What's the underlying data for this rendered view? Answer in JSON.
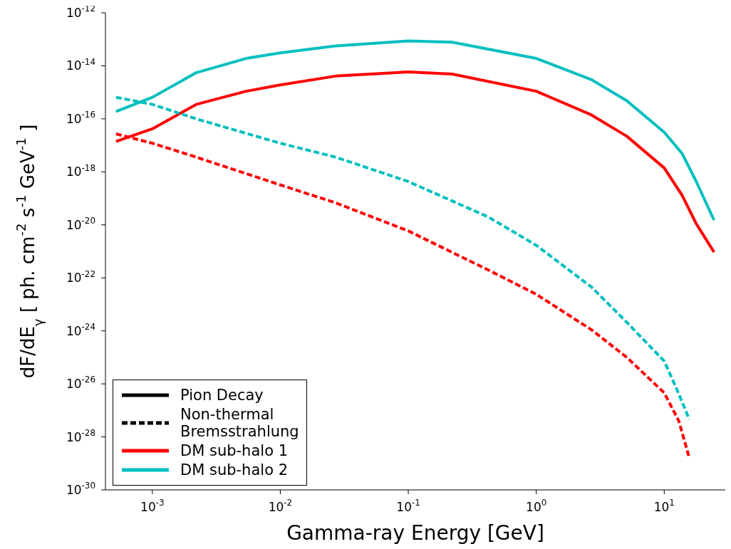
{
  "chart_data": {
    "type": "line",
    "xlabel": "Gamma-ray Energy  [GeV]",
    "ylabel": "dF/dE$_{γ}$  [ ph. cm$^{-2}$ s$^{-1}$ GeV$^{-1}$ ]",
    "log": "xy",
    "grid": false,
    "legend": "bottom left",
    "marker": "none",
    "xlim": [
      0.00043,
      30
    ],
    "ylim": [
      1e-30,
      1e-12
    ],
    "xticks": [
      {
        "value": 0.001,
        "label": "10$^{-3}$"
      },
      {
        "value": 0.01,
        "label": "10$^{-2}$"
      },
      {
        "value": 0.1,
        "label": "10$^{-1}$"
      },
      {
        "value": 1,
        "label": "10$^{0}$"
      },
      {
        "value": 10,
        "label": "10$^{1}$"
      }
    ],
    "yticks": [
      {
        "value": 1e-30,
        "label": "10$^{-30}$"
      },
      {
        "value": 1e-28,
        "label": "10$^{-28}$"
      },
      {
        "value": 1e-26,
        "label": "10$^{-26}$"
      },
      {
        "value": 1e-24,
        "label": "10$^{-24}$"
      },
      {
        "value": 1e-22,
        "label": "10$^{-22}$"
      },
      {
        "value": 1e-20,
        "label": "10$^{-20}$"
      },
      {
        "value": 1e-18,
        "label": "10$^{-18}$"
      },
      {
        "value": 1e-16,
        "label": "10$^{-16}$"
      },
      {
        "value": 1e-14,
        "label": "10$^{-14}$"
      },
      {
        "value": 1e-12,
        "label": "10$^{-12}$"
      }
    ],
    "annotations": [
      "Pion Decay",
      "Non-thermal\nBremsstrahlung"
    ],
    "series": [
      {
        "name": "DM sub-halo 1",
        "color": "#ff0000",
        "line_style": "solid",
        "x": [
          0.00052,
          0.001,
          0.0022,
          0.0054,
          0.01,
          0.027,
          0.1,
          0.22,
          1,
          2.7,
          5.1,
          10,
          13.8,
          17.8,
          24.5
        ],
        "values": [
          1.4e-17,
          4.2e-17,
          3.5e-16,
          1.1e-15,
          1.9e-15,
          4.1e-15,
          5.9e-15,
          4.9e-15,
          1.1e-15,
          1.4e-16,
          2.2e-17,
          1.4e-18,
          1.3e-19,
          1.1e-20,
          9.3e-22
        ]
      },
      {
        "name": "DM sub-halo 2",
        "color": "#00bfbf",
        "line_style": "solid",
        "x": [
          0.00052,
          0.001,
          0.0022,
          0.0054,
          0.01,
          0.027,
          0.1,
          0.22,
          1,
          2.7,
          5.1,
          10,
          13.8,
          17.8,
          24.5
        ],
        "values": [
          1.9e-16,
          6.5e-16,
          5.5e-15,
          1.9e-14,
          3.1e-14,
          5.6e-14,
          8.7e-14,
          7.8e-14,
          1.9e-14,
          3e-15,
          4.8e-16,
          3.1e-17,
          4.9e-18,
          4.3e-19,
          1.5e-20
        ]
      },
      {
        "color": "#ff0000",
        "line_style": "dashed",
        "x": [
          0.00052,
          0.001,
          0.0022,
          0.01,
          0.027,
          0.1,
          0.42,
          1,
          2.7,
          5.1,
          10,
          13,
          15.7
        ],
        "values": [
          2.7e-17,
          1.2e-17,
          3.6e-18,
          3.2e-19,
          6.8e-20,
          5.9e-21,
          2e-22,
          2.4e-23,
          1.1e-24,
          1e-25,
          4.6e-27,
          4e-28,
          1.6e-29
        ]
      },
      {
        "color": "#00bfbf",
        "line_style": "dashed",
        "x": [
          0.00052,
          0.001,
          0.0022,
          0.01,
          0.027,
          0.1,
          0.42,
          1,
          2.7,
          5.1,
          10,
          12.2,
          15.7
        ],
        "values": [
          6.5e-16,
          3.5e-16,
          1e-16,
          1.2e-17,
          3.6e-18,
          4.3e-19,
          2e-20,
          1.7e-21,
          4.5e-23,
          2.1e-24,
          7.2e-26,
          8.5e-27,
          4.6e-28
        ]
      }
    ]
  }
}
